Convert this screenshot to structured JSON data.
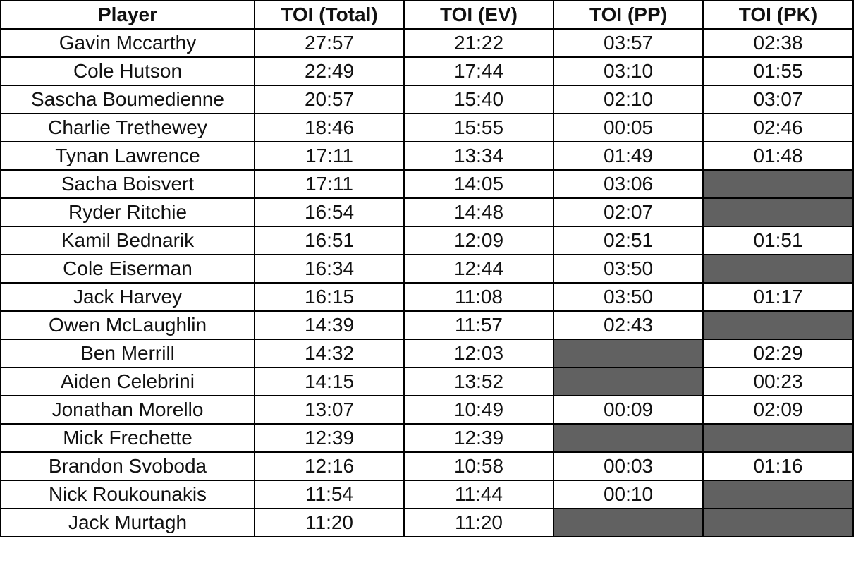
{
  "table": {
    "header": [
      "Player",
      "TOI (Total)",
      "TOI (EV)",
      "TOI (PP)",
      "TOI (PK)"
    ],
    "rows": [
      [
        "Gavin Mccarthy",
        "27:57",
        "21:22",
        "03:57",
        "02:38"
      ],
      [
        "Cole Hutson",
        "22:49",
        "17:44",
        "03:10",
        "01:55"
      ],
      [
        "Sascha Boumedienne",
        "20:57",
        "15:40",
        "02:10",
        "03:07"
      ],
      [
        "Charlie Trethewey",
        "18:46",
        "15:55",
        "00:05",
        "02:46"
      ],
      [
        "Tynan Lawrence",
        "17:11",
        "13:34",
        "01:49",
        "01:48"
      ],
      [
        "Sacha Boisvert",
        "17:11",
        "14:05",
        "03:06",
        null
      ],
      [
        "Ryder Ritchie",
        "16:54",
        "14:48",
        "02:07",
        null
      ],
      [
        "Kamil Bednarik",
        "16:51",
        "12:09",
        "02:51",
        "01:51"
      ],
      [
        "Cole Eiserman",
        "16:34",
        "12:44",
        "03:50",
        null
      ],
      [
        "Jack Harvey",
        "16:15",
        "11:08",
        "03:50",
        "01:17"
      ],
      [
        "Owen McLaughlin",
        "14:39",
        "11:57",
        "02:43",
        null
      ],
      [
        "Ben Merrill",
        "14:32",
        "12:03",
        null,
        "02:29"
      ],
      [
        "Aiden Celebrini",
        "14:15",
        "13:52",
        null,
        "00:23"
      ],
      [
        "Jonathan Morello",
        "13:07",
        "10:49",
        "00:09",
        "02:09"
      ],
      [
        "Mick Frechette",
        "12:39",
        "12:39",
        null,
        null
      ],
      [
        "Brandon Svoboda",
        "12:16",
        "10:58",
        "00:03",
        "01:16"
      ],
      [
        "Nick Roukounakis",
        "11:54",
        "11:44",
        "00:10",
        null
      ],
      [
        "Jack Murtagh",
        "11:20",
        "11:20",
        null,
        null
      ]
    ]
  }
}
